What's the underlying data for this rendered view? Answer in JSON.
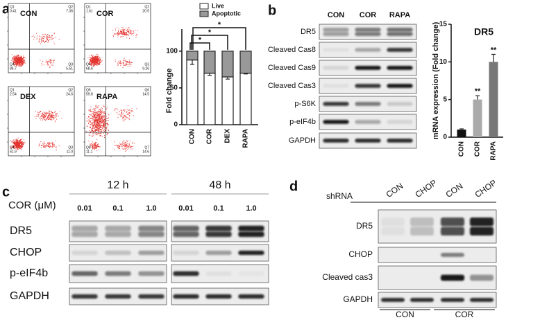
{
  "panel_labels": [
    "a",
    "b",
    "c",
    "d"
  ],
  "flow": {
    "plots": [
      {
        "name": "CON",
        "quadrants": [
          {
            "label": "Q1",
            "value": "0.41"
          },
          {
            "label": "Q2",
            "value": "7.36"
          },
          {
            "label": "Q4",
            "value": "86.7"
          },
          {
            "label": "Q3",
            "value": "5.51"
          }
        ]
      },
      {
        "name": "COR",
        "quadrants": [
          {
            "label": "Q1",
            "value": "1.61"
          },
          {
            "label": "Q2",
            "value": "20.5"
          },
          {
            "label": "Q4",
            "value": "68.6"
          },
          {
            "label": "Q3",
            "value": "9.26"
          }
        ]
      },
      {
        "name": "DEX",
        "quadrants": [
          {
            "label": "Q1",
            "value": "2.54"
          },
          {
            "label": "Q2",
            "value": "24.6"
          },
          {
            "label": "Q4",
            "value": "61.9"
          },
          {
            "label": "Q3",
            "value": "11.0"
          }
        ]
      },
      {
        "name": "RAPA",
        "quadrants": [
          {
            "label": "Q5",
            "value": "59.8"
          },
          {
            "label": "Q6",
            "value": "14.5"
          },
          {
            "label": "Q8",
            "value": "11.1"
          },
          {
            "label": "Q7",
            "value": "14.6"
          }
        ]
      }
    ]
  },
  "chart_data": [
    {
      "type": "stacked_bar",
      "ylabel": "Fold change",
      "categories": [
        "CON",
        "COR",
        "DEX",
        "RAPA"
      ],
      "series": [
        {
          "name": "Live",
          "color": "#ffffff",
          "values": [
            88,
            70,
            65,
            70
          ],
          "errors": [
            6,
            3,
            3,
            1
          ]
        },
        {
          "name": "Apoptotic",
          "color": "#999999",
          "values": [
            12,
            30,
            35,
            30
          ]
        }
      ],
      "ylim": [
        0,
        130
      ],
      "yticks": [
        0,
        50,
        100
      ],
      "annotations": [
        "*",
        "*",
        "*"
      ]
    },
    {
      "type": "bar",
      "title": "DR5",
      "ylabel": "mRNA expression (Fold change)",
      "categories": [
        "CON",
        "COR",
        "RAPA"
      ],
      "values": [
        1,
        5,
        10
      ],
      "errors": [
        0.1,
        0.5,
        1
      ],
      "colors": [
        "#111111",
        "#aaaaaa",
        "#777777"
      ],
      "ylim": [
        0,
        15
      ],
      "yticks": [
        0,
        5,
        10,
        15
      ],
      "annotations": [
        "**",
        "**"
      ]
    }
  ],
  "blot_b": {
    "columns": [
      "CON",
      "COR",
      "RAPA"
    ],
    "rows": [
      "DR5",
      "Cleaved Cas8",
      "Cleaved Cas9",
      "Cleaved Cas3",
      "p-S6K",
      "p-eIF4b",
      "GAPDH"
    ]
  },
  "blot_c": {
    "treatment": "COR (μM)",
    "times": [
      "12 h",
      "48 h"
    ],
    "doses": [
      "0.01",
      "0.1",
      "1.0"
    ],
    "rows": [
      "DR5",
      "CHOP",
      "p-eIF4b",
      "GAPDH"
    ]
  },
  "blot_d": {
    "header": "shRNA",
    "columns": [
      "CON",
      "CHOP",
      "CON",
      "CHOP"
    ],
    "rows": [
      "DR5",
      "CHOP",
      "Cleaved cas3",
      "GAPDH"
    ],
    "groups": [
      "CON",
      "COR"
    ]
  }
}
